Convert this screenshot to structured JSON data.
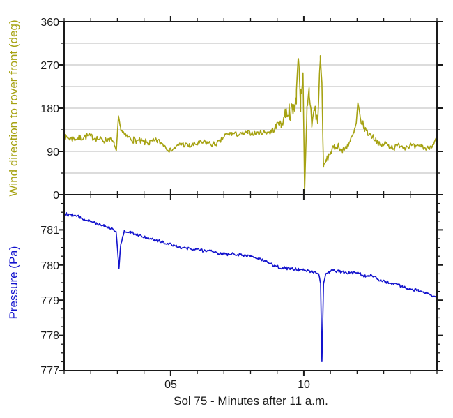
{
  "colors": {
    "background": "#ffffff",
    "frame": "#1a1a1a",
    "grid": "#b9b9b9",
    "tick_text": "#1a1a1a",
    "wind_accent": "#a6a212",
    "pressure_accent": "#1313cd"
  },
  "chart_data": {
    "type": "line",
    "xlabel": "Sol 75 - Minutes after 11 a.m.",
    "xlim": [
      1,
      15
    ],
    "x_minor_tick_step": 1,
    "x_major_ticks": [
      5,
      10
    ],
    "x_major_tick_labels": [
      "05",
      "10"
    ],
    "legend": "none",
    "point_format": [
      "minute",
      "value",
      "noise_amplitude"
    ],
    "panels": [
      {
        "name": "wind-direction-panel",
        "ylabel": "Wind direction to rover front (deg)",
        "ylim": [
          0,
          360
        ],
        "yticks": [
          360,
          270,
          180,
          90,
          0
        ],
        "ytick_labels": [
          "360",
          "270",
          "180",
          "90",
          "0"
        ],
        "y_minor_step": 45,
        "grid_step": 45,
        "grid_on": true,
        "color": "#a6a212",
        "series_name": "wind_direction_deg",
        "points": [
          [
            1.02,
            120,
            6
          ],
          [
            1.3,
            116,
            7
          ],
          [
            1.6,
            118,
            7
          ],
          [
            1.9,
            122,
            7
          ],
          [
            2.2,
            118,
            7
          ],
          [
            2.5,
            112,
            6
          ],
          [
            2.7,
            116,
            6
          ],
          [
            2.88,
            106,
            4
          ],
          [
            2.96,
            90,
            2
          ],
          [
            3.04,
            162,
            2
          ],
          [
            3.12,
            138,
            4
          ],
          [
            3.3,
            122,
            6
          ],
          [
            3.6,
            114,
            7
          ],
          [
            3.9,
            110,
            7
          ],
          [
            4.2,
            108,
            7
          ],
          [
            4.5,
            112,
            7
          ],
          [
            4.75,
            104,
            6
          ],
          [
            4.95,
            92,
            4
          ],
          [
            5.15,
            97,
            5
          ],
          [
            5.4,
            106,
            6
          ],
          [
            5.7,
            101,
            6
          ],
          [
            6.0,
            106,
            6
          ],
          [
            6.3,
            109,
            6
          ],
          [
            6.6,
            104,
            6
          ],
          [
            6.85,
            110,
            5
          ],
          [
            7.05,
            124,
            5
          ],
          [
            7.3,
            127,
            5
          ],
          [
            7.6,
            125,
            5
          ],
          [
            7.9,
            129,
            5
          ],
          [
            8.2,
            127,
            5
          ],
          [
            8.5,
            131,
            5
          ],
          [
            8.75,
            130,
            6
          ],
          [
            8.95,
            140,
            8
          ],
          [
            9.05,
            152,
            6
          ],
          [
            9.15,
            143,
            8
          ],
          [
            9.3,
            170,
            14
          ],
          [
            9.45,
            175,
            18
          ],
          [
            9.6,
            168,
            22
          ],
          [
            9.72,
            210,
            25
          ],
          [
            9.8,
            288,
            8
          ],
          [
            9.88,
            195,
            25
          ],
          [
            9.97,
            262,
            20
          ],
          [
            10.03,
            3,
            3
          ],
          [
            10.12,
            168,
            22
          ],
          [
            10.2,
            215,
            20
          ],
          [
            10.3,
            152,
            22
          ],
          [
            10.42,
            178,
            20
          ],
          [
            10.52,
            148,
            18
          ],
          [
            10.62,
            288,
            10
          ],
          [
            10.68,
            225,
            25
          ],
          [
            10.74,
            58,
            4
          ],
          [
            10.85,
            72,
            6
          ],
          [
            11.0,
            88,
            7
          ],
          [
            11.15,
            98,
            7
          ],
          [
            11.3,
            103,
            7
          ],
          [
            11.45,
            90,
            6
          ],
          [
            11.6,
            100,
            6
          ],
          [
            11.75,
            112,
            6
          ],
          [
            11.88,
            128,
            6
          ],
          [
            11.97,
            148,
            7
          ],
          [
            12.03,
            190,
            3
          ],
          [
            12.12,
            158,
            8
          ],
          [
            12.25,
            142,
            8
          ],
          [
            12.4,
            128,
            7
          ],
          [
            12.55,
            122,
            6
          ],
          [
            12.7,
            115,
            6
          ],
          [
            12.9,
            100,
            5
          ],
          [
            13.05,
            108,
            6
          ],
          [
            13.2,
            102,
            6
          ],
          [
            13.4,
            97,
            6
          ],
          [
            13.6,
            104,
            6
          ],
          [
            13.8,
            99,
            6
          ],
          [
            14.0,
            103,
            6
          ],
          [
            14.2,
            98,
            6
          ],
          [
            14.4,
            102,
            5
          ],
          [
            14.6,
            95,
            5
          ],
          [
            14.8,
            102,
            5
          ],
          [
            14.92,
            110,
            4
          ],
          [
            15.0,
            121,
            2
          ]
        ]
      },
      {
        "name": "pressure-panel",
        "ylabel": "Pressure (Pa)",
        "ylim": [
          777,
          782
        ],
        "yticks": [
          781,
          780,
          779,
          778,
          777
        ],
        "ytick_labels": [
          "781",
          "780",
          "779",
          "778",
          "777"
        ],
        "y_minor_step": 0.25,
        "grid_on": false,
        "color": "#1313cd",
        "series_name": "pressure_pa",
        "points": [
          [
            1.02,
            781.45,
            0.05
          ],
          [
            1.3,
            781.42,
            0.05
          ],
          [
            1.6,
            781.35,
            0.05
          ],
          [
            1.9,
            781.28,
            0.05
          ],
          [
            2.2,
            781.2,
            0.05
          ],
          [
            2.5,
            781.12,
            0.04
          ],
          [
            2.8,
            781.05,
            0.04
          ],
          [
            2.95,
            780.95,
            0.03
          ],
          [
            3.02,
            780.3,
            0.02
          ],
          [
            3.06,
            779.9,
            0.01
          ],
          [
            3.12,
            780.55,
            0.02
          ],
          [
            3.25,
            780.95,
            0.03
          ],
          [
            3.5,
            780.92,
            0.04
          ],
          [
            3.8,
            780.85,
            0.04
          ],
          [
            4.1,
            780.78,
            0.04
          ],
          [
            4.4,
            780.72,
            0.05
          ],
          [
            4.7,
            780.65,
            0.04
          ],
          [
            5.0,
            780.6,
            0.04
          ],
          [
            5.3,
            780.52,
            0.04
          ],
          [
            5.6,
            780.47,
            0.05
          ],
          [
            5.9,
            780.45,
            0.04
          ],
          [
            6.2,
            780.42,
            0.05
          ],
          [
            6.5,
            780.4,
            0.04
          ],
          [
            6.8,
            780.33,
            0.04
          ],
          [
            7.1,
            780.3,
            0.04
          ],
          [
            7.4,
            780.32,
            0.04
          ],
          [
            7.7,
            780.28,
            0.04
          ],
          [
            8.0,
            780.25,
            0.05
          ],
          [
            8.3,
            780.18,
            0.04
          ],
          [
            8.6,
            780.08,
            0.04
          ],
          [
            8.9,
            779.98,
            0.04
          ],
          [
            9.2,
            779.92,
            0.05
          ],
          [
            9.5,
            779.9,
            0.04
          ],
          [
            9.8,
            779.87,
            0.05
          ],
          [
            10.1,
            779.85,
            0.04
          ],
          [
            10.35,
            779.8,
            0.04
          ],
          [
            10.55,
            779.75,
            0.03
          ],
          [
            10.63,
            779.5,
            0.02
          ],
          [
            10.68,
            777.25,
            0.01
          ],
          [
            10.74,
            779.45,
            0.02
          ],
          [
            10.82,
            779.75,
            0.02
          ],
          [
            10.95,
            779.8,
            0.03
          ],
          [
            11.1,
            779.85,
            0.04
          ],
          [
            11.3,
            779.82,
            0.04
          ],
          [
            11.5,
            779.8,
            0.04
          ],
          [
            11.7,
            779.78,
            0.04
          ],
          [
            11.9,
            779.78,
            0.04
          ],
          [
            12.1,
            779.75,
            0.04
          ],
          [
            12.3,
            779.68,
            0.04
          ],
          [
            12.5,
            779.7,
            0.04
          ],
          [
            12.7,
            779.65,
            0.04
          ],
          [
            12.9,
            779.55,
            0.04
          ],
          [
            13.1,
            779.52,
            0.04
          ],
          [
            13.3,
            779.48,
            0.04
          ],
          [
            13.5,
            779.45,
            0.04
          ],
          [
            13.7,
            779.38,
            0.04
          ],
          [
            13.9,
            779.33,
            0.04
          ],
          [
            14.1,
            779.3,
            0.04
          ],
          [
            14.3,
            779.27,
            0.04
          ],
          [
            14.5,
            779.22,
            0.03
          ],
          [
            14.7,
            779.18,
            0.03
          ],
          [
            14.85,
            779.12,
            0.03
          ],
          [
            15.0,
            779.08,
            0.02
          ]
        ]
      }
    ]
  }
}
